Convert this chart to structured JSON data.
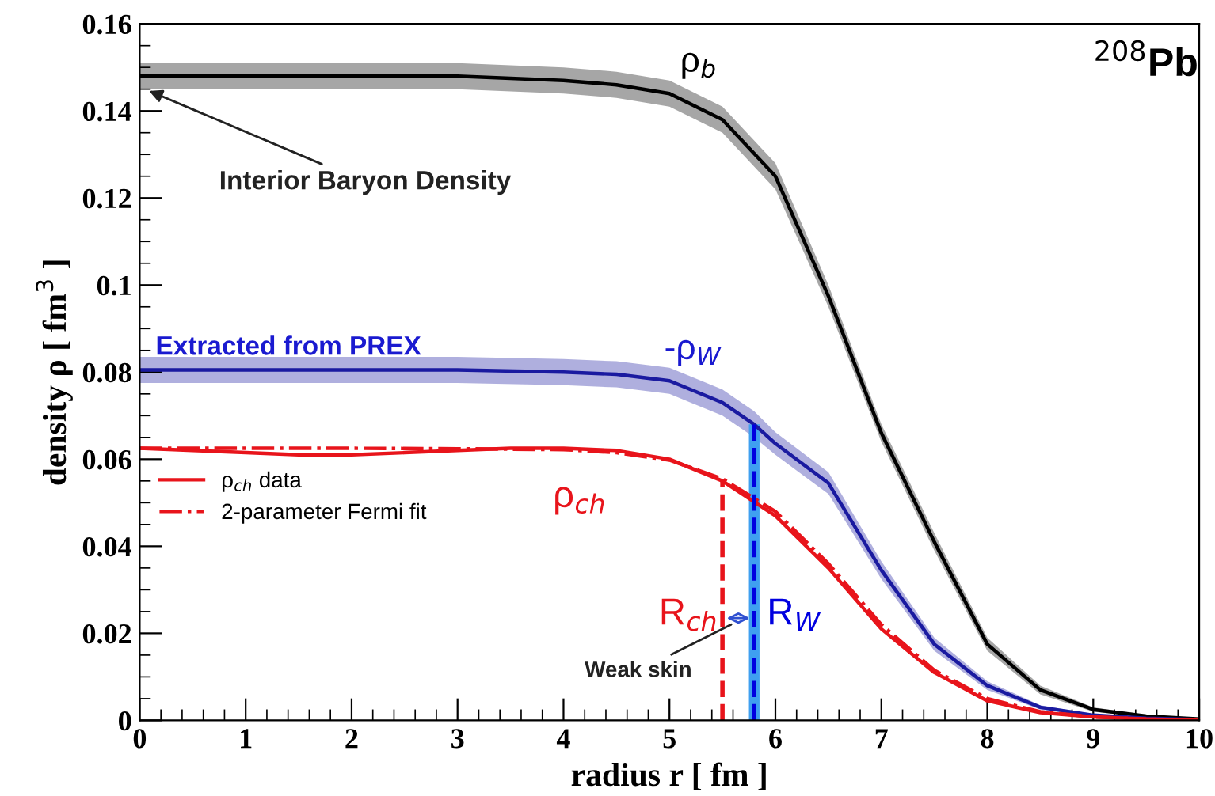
{
  "chart_data": {
    "type": "line",
    "xlabel": "radius r [ fm ]",
    "ylabel": "density ρ [ fm$^{3}$ ]",
    "xlim": [
      0,
      10
    ],
    "ylim": [
      0,
      0.16
    ],
    "xticks": [
      0,
      1,
      2,
      3,
      4,
      5,
      6,
      7,
      8,
      9,
      10
    ],
    "yticks": [
      0,
      0.02,
      0.04,
      0.06,
      0.08,
      0.1,
      0.12,
      0.14,
      0.16
    ],
    "grid": false,
    "legend": "center left",
    "series": [
      {
        "color": "#000000",
        "x": [
          0,
          1,
          2,
          3,
          4,
          4.5,
          5,
          5.5,
          6,
          6.5,
          7,
          7.5,
          8,
          8.5,
          9,
          9.5,
          10
        ],
        "values": [
          0.148,
          0.148,
          0.148,
          0.148,
          0.147,
          0.146,
          0.144,
          0.138,
          0.125,
          0.0975,
          0.066,
          0.041,
          0.0175,
          0.007,
          0.0025,
          0.001,
          0.0003
        ],
        "lower": [
          0.145,
          0.145,
          0.145,
          0.145,
          0.144,
          0.143,
          0.141,
          0.135,
          0.122,
          0.095,
          0.064,
          0.039,
          0.016,
          0.006,
          0.002,
          0.0007,
          0.0002
        ],
        "upper": [
          0.151,
          0.151,
          0.151,
          0.151,
          0.15,
          0.149,
          0.147,
          0.141,
          0.128,
          0.1,
          0.068,
          0.043,
          0.019,
          0.008,
          0.003,
          0.0013,
          0.0004
        ]
      },
      {
        "color": "#1a1aa0",
        "x": [
          0,
          1,
          2,
          3,
          4,
          4.5,
          5,
          5.5,
          5.8,
          6,
          6.5,
          7,
          7.5,
          8,
          8.5,
          9,
          9.5,
          10
        ],
        "values": [
          0.0805,
          0.0805,
          0.0805,
          0.0805,
          0.08,
          0.0795,
          0.078,
          0.073,
          0.068,
          0.0636,
          0.0545,
          0.0345,
          0.0175,
          0.008,
          0.003,
          0.0012,
          0.0005,
          0.0002
        ],
        "lower": [
          0.0775,
          0.0775,
          0.0775,
          0.0775,
          0.077,
          0.0765,
          0.075,
          0.07,
          0.065,
          0.061,
          0.052,
          0.0325,
          0.016,
          0.007,
          0.0025,
          0.0009,
          0.0003,
          0.0001
        ],
        "upper": [
          0.0835,
          0.0835,
          0.0835,
          0.0835,
          0.083,
          0.0825,
          0.081,
          0.076,
          0.071,
          0.0662,
          0.057,
          0.0365,
          0.019,
          0.009,
          0.0035,
          0.0015,
          0.0007,
          0.0003
        ]
      },
      {
        "name": "ρ$_{ch}$ data",
        "color": "#e8141b",
        "x": [
          0,
          0.5,
          1,
          1.5,
          2,
          2.5,
          3,
          3.5,
          4,
          4.5,
          5,
          5.5,
          6,
          6.5,
          7,
          7.5,
          8,
          8.5,
          9,
          9.5,
          10
        ],
        "values": [
          0.0625,
          0.062,
          0.0615,
          0.061,
          0.061,
          0.0615,
          0.062,
          0.0625,
          0.0625,
          0.062,
          0.06,
          0.055,
          0.047,
          0.035,
          0.021,
          0.011,
          0.0045,
          0.0018,
          0.0008,
          0.0003,
          0.0001
        ]
      },
      {
        "name": "2-parameter Fermi fit",
        "color": "#e8141b",
        "line_style": "dashdot",
        "x": [
          0,
          1,
          2,
          3,
          4,
          4.5,
          5,
          5.5,
          6,
          6.5,
          7,
          7.5,
          8,
          8.5,
          9,
          9.5,
          10
        ],
        "values": [
          0.0625,
          0.0625,
          0.0625,
          0.0624,
          0.0622,
          0.0615,
          0.0598,
          0.0555,
          0.048,
          0.036,
          0.022,
          0.0115,
          0.005,
          0.002,
          0.0008,
          0.0003,
          0.0001
        ]
      }
    ],
    "ref_lines": [
      {
        "axis": "x",
        "value": 5.5,
        "label": "R$_{ch}$",
        "color": "#e8141b",
        "line_style": "dashed"
      },
      {
        "axis": "x",
        "value": 5.8,
        "label": "R$_{W}$",
        "color": "#0000e0",
        "line_style": "dashed"
      }
    ],
    "bands": [
      {
        "axis": "x",
        "from": 5.75,
        "to": 5.85,
        "color": "#3fa0f0"
      }
    ],
    "annotations": [
      {
        "text": "Interior Baryon Density",
        "x": 0.05,
        "y": 0.145
      },
      "Weak skin",
      "Extracted from PREX",
      "ρ$_{b}$",
      "-ρ$_{W}$",
      "ρ$_{ch}$",
      "$^{208}$Pb"
    ]
  }
}
